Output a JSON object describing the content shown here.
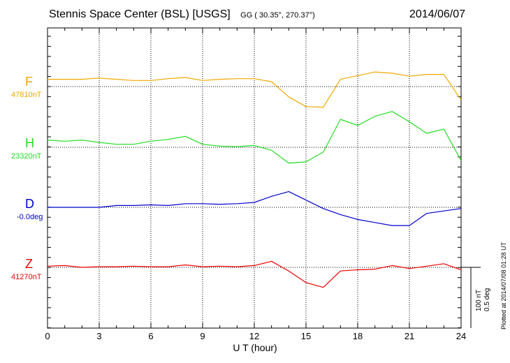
{
  "title": {
    "station": "Stennis Space Center (BSL)",
    "network": "[USGS]",
    "coords": "GG ( 30.35°, 270.37°)",
    "date": "2014/06/07"
  },
  "plotted_note": "Plotted at 2014/07/08 01:28 UT",
  "scale": {
    "nT": "100 nT",
    "deg": "0.5 deg"
  },
  "chart_data": {
    "type": "line",
    "xlabel": "U T (hour)",
    "xlim": [
      0,
      24
    ],
    "xticks": [
      "0",
      "3",
      "6",
      "9",
      "12",
      "15",
      "18",
      "21",
      "24"
    ],
    "grid": true,
    "units_per_scale_bar": {
      "nT": 100,
      "deg": 0.5
    },
    "x": [
      0,
      1,
      2,
      3,
      4,
      5,
      6,
      7,
      8,
      9,
      10,
      11,
      12,
      13,
      14,
      15,
      16,
      17,
      18,
      19,
      20,
      21,
      22,
      23,
      24
    ],
    "series": [
      {
        "name": "F",
        "baseline": "47810nT",
        "color": "#f0a800",
        "values": [
          12,
          12,
          12,
          14,
          12,
          10,
          10,
          13,
          15,
          10,
          12,
          13,
          13,
          8,
          -17,
          -33,
          -34,
          12,
          18,
          24,
          22,
          17,
          20,
          20,
          -22
        ]
      },
      {
        "name": "H",
        "baseline": "23320nT",
        "color": "#20dd20",
        "values": [
          12,
          10,
          12,
          8,
          5,
          5,
          10,
          13,
          18,
          5,
          2,
          1,
          3,
          -5,
          -26,
          -24,
          -8,
          46,
          36,
          51,
          59,
          42,
          23,
          30,
          -22
        ]
      },
      {
        "name": "D",
        "baseline": "-0.0deg",
        "color": "#0000cc",
        "values": [
          0,
          0,
          0,
          0,
          3,
          3,
          4,
          3,
          6,
          6,
          5,
          6,
          8,
          18,
          26,
          12,
          -2,
          -12,
          -20,
          -25,
          -30,
          -30,
          -10,
          -6,
          -2
        ]
      },
      {
        "name": "Z",
        "baseline": "41270nT",
        "color": "#ee0000",
        "values": [
          2,
          3,
          0,
          1,
          1,
          2,
          1,
          1,
          4,
          1,
          2,
          1,
          3,
          10,
          -6,
          -25,
          -33,
          -6,
          -4,
          -3,
          3,
          -2,
          2,
          6,
          -4
        ]
      }
    ]
  }
}
